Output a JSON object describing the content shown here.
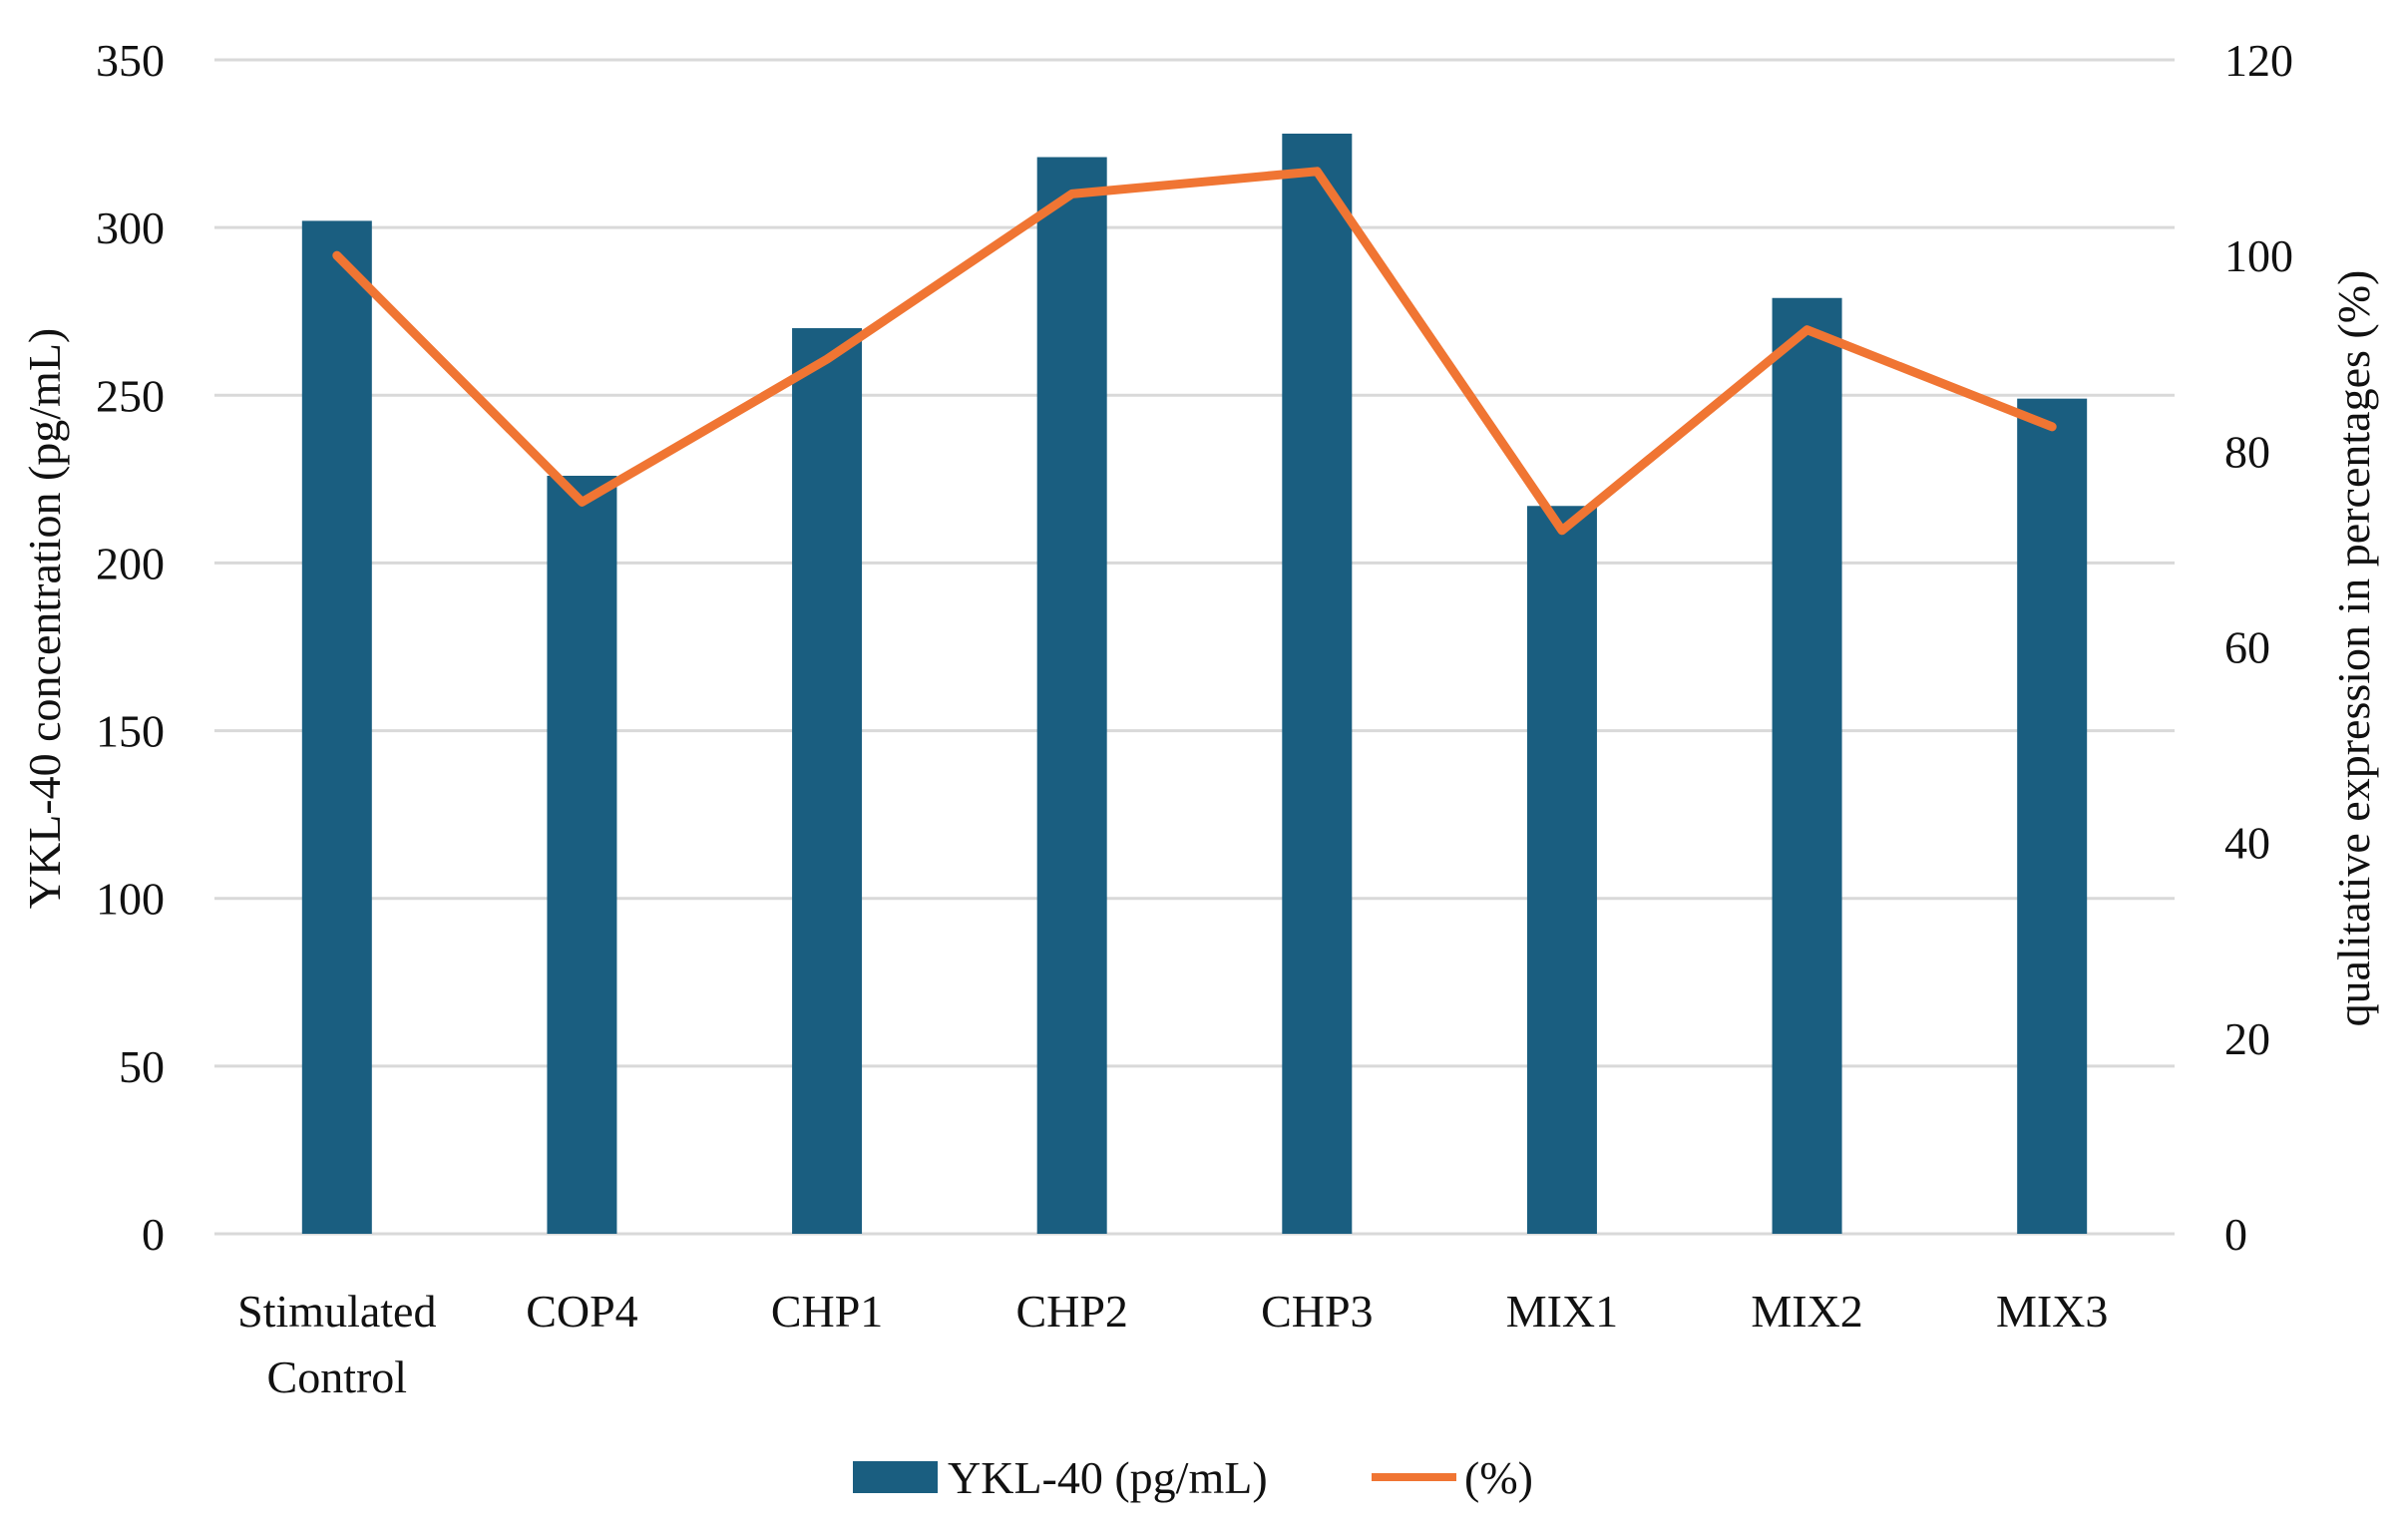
{
  "chart_data": {
    "type": "bar",
    "categories": [
      "Stimulated Control",
      "COP4",
      "CHP1",
      "CHP2",
      "CHP3",
      "MIX1",
      "MIX2",
      "MIX3"
    ],
    "category_lines": [
      [
        "Stimulated",
        "Control"
      ],
      [
        "COP4"
      ],
      [
        "CHP1"
      ],
      [
        "CHP2"
      ],
      [
        "CHP3"
      ],
      [
        "MIX1"
      ],
      [
        "MIX2"
      ],
      [
        "MIX3"
      ]
    ],
    "series": [
      {
        "name": "YKL-40 (pg/mL)",
        "kind": "bar",
        "axis": "left",
        "color": "#1a5e80",
        "values": [
          302,
          226,
          270,
          321,
          328,
          217,
          279,
          249
        ]
      },
      {
        "name": "(%)",
        "kind": "line",
        "axis": "right",
        "color": "#f07533",
        "values": [
          100,
          74.8,
          89.4,
          106.3,
          108.6,
          71.9,
          92.4,
          82.5
        ]
      }
    ],
    "left_axis": {
      "title": "YKL-40 concentration (pg/mL)",
      "ylim": [
        0,
        350
      ],
      "ticks": [
        0,
        50,
        100,
        150,
        200,
        250,
        300,
        350
      ]
    },
    "right_axis": {
      "title": "qualitative expression in percentages (%)",
      "ylim": [
        0,
        120
      ],
      "ticks": [
        0,
        20,
        40,
        60,
        80,
        100,
        120
      ]
    },
    "grid": true,
    "gridline_color": "#d9d9d9",
    "legend_position": "bottom"
  }
}
